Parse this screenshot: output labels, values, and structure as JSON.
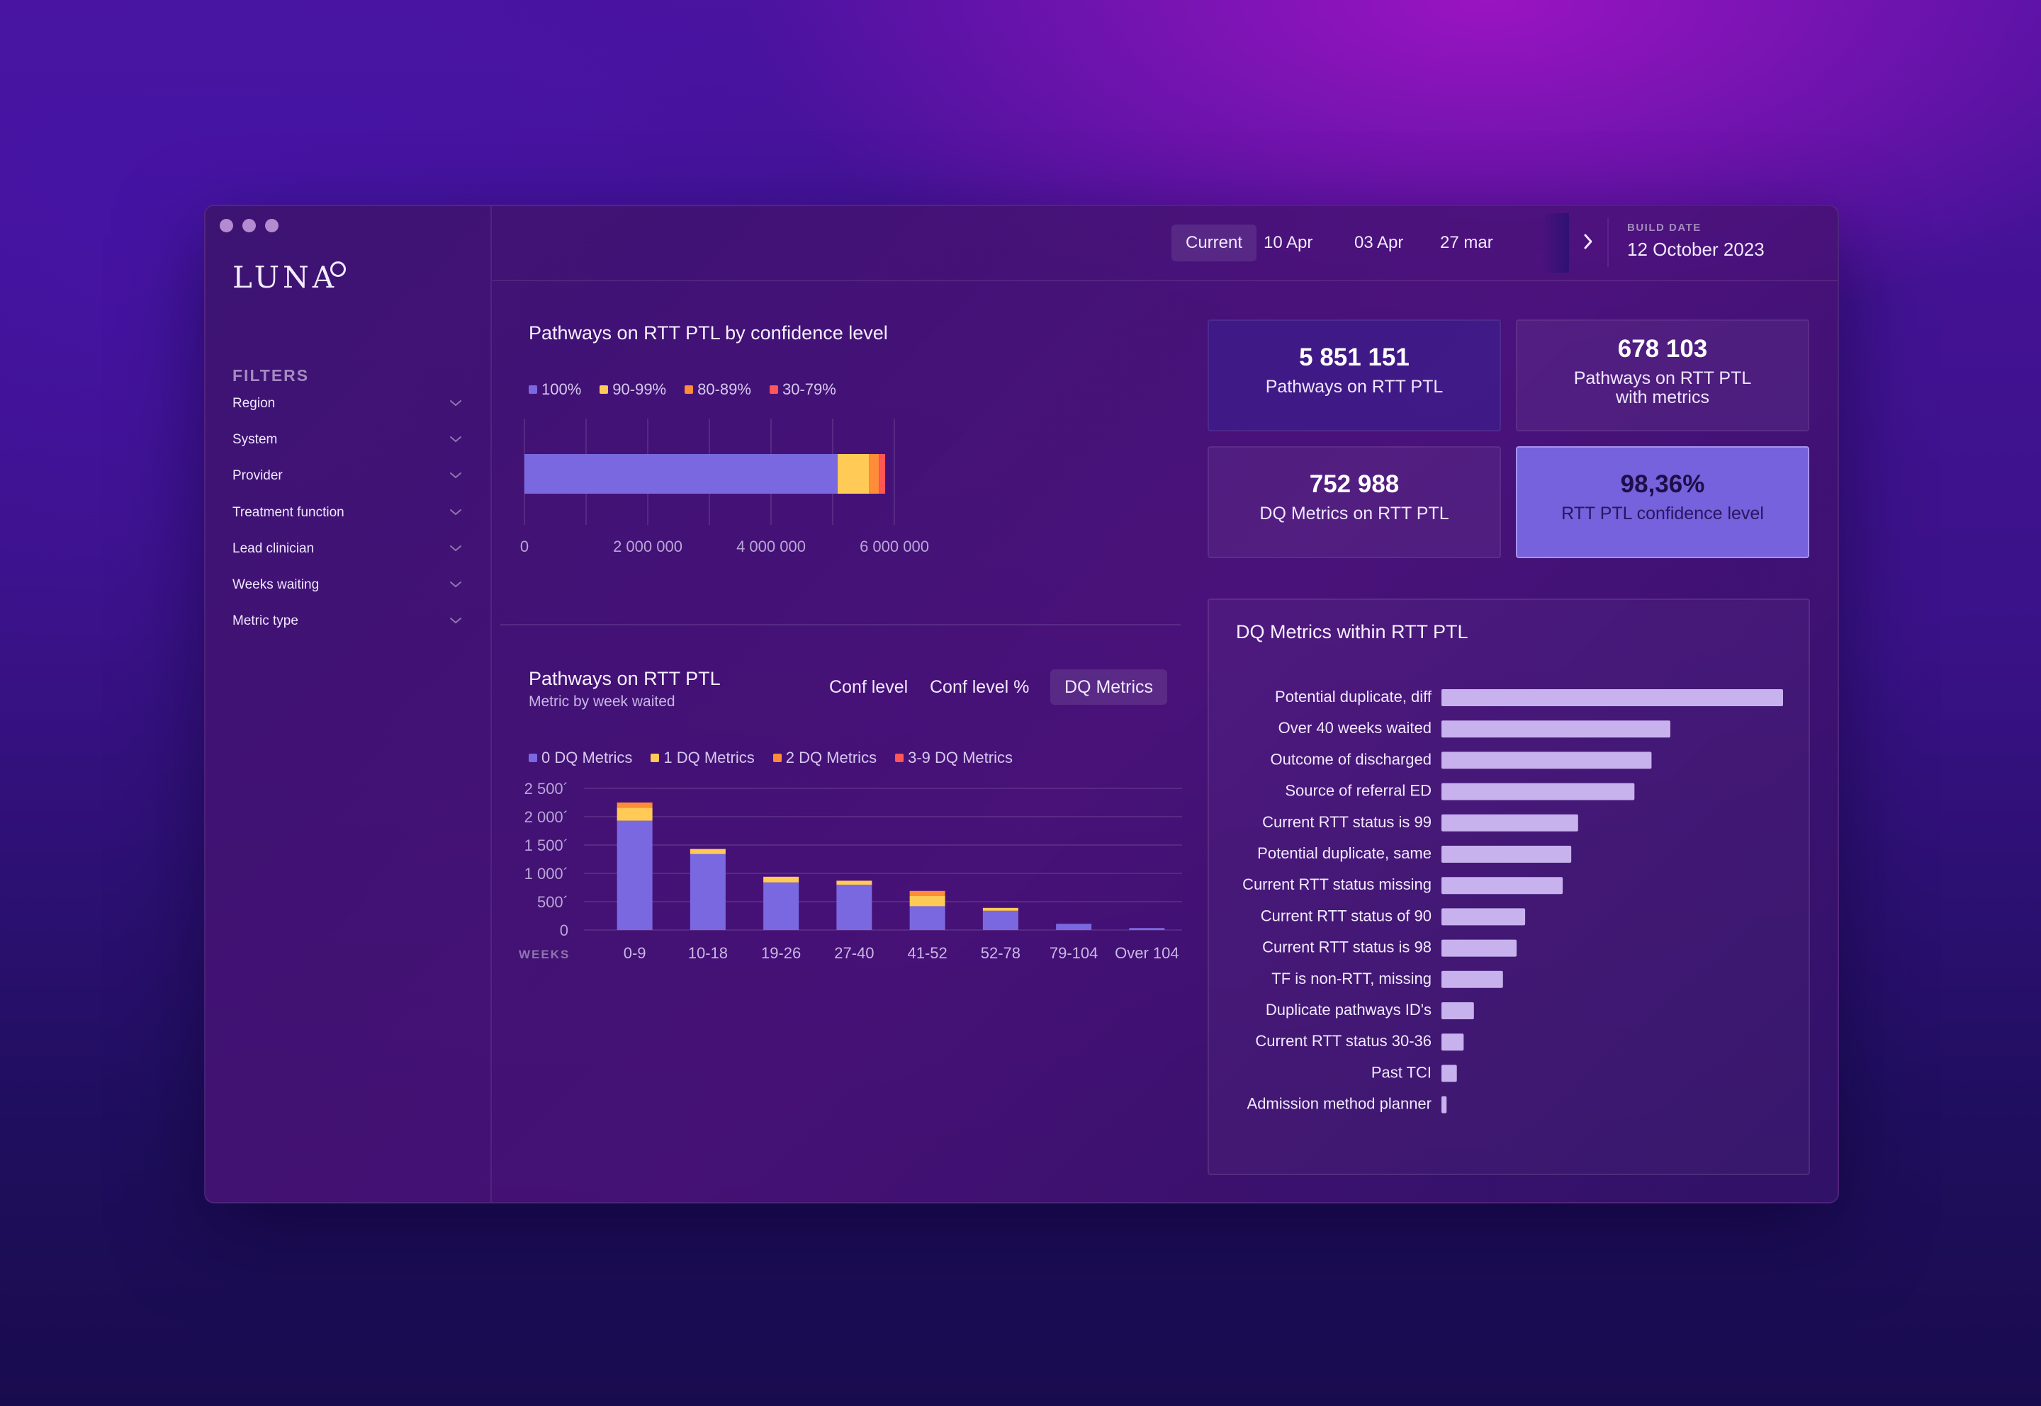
{
  "window": {
    "traffic_light_labels": [
      "close",
      "minimize",
      "zoom"
    ]
  },
  "sidebar": {
    "logo": "LUNA",
    "filters_title": "FILTERS",
    "filters": [
      {
        "label": "Region"
      },
      {
        "label": "System"
      },
      {
        "label": "Provider"
      },
      {
        "label": "Treatment function"
      },
      {
        "label": "Lead clinician"
      },
      {
        "label": "Weeks waiting"
      },
      {
        "label": "Metric type"
      }
    ]
  },
  "topbar": {
    "tabs": [
      "Current",
      "10 Apr",
      "03 Apr",
      "27 mar"
    ],
    "active_tab": "Current",
    "build_label": "BUILD DATE",
    "build_date": "12 October 2023"
  },
  "colors": {
    "c0": "#7a68e0",
    "c1": "#ffca55",
    "c2": "#ff8c38",
    "c3": "#ff5656",
    "dq_bar": "#c8b2ee",
    "kpi_highlight": "#7562dc"
  },
  "confidence_chart": {
    "title": "Pathways on RTT PTL by confidence level",
    "legend": [
      "100%",
      "90-99%",
      "80-89%",
      "30-79%"
    ]
  },
  "weeks_chart": {
    "title": "Pathways on RTT PTL",
    "subtitle": "Metric by week waited",
    "mode_tabs": [
      "Conf level",
      "Conf level %",
      "DQ Metrics"
    ],
    "active_mode": "DQ Metrics",
    "legend": [
      "0 DQ Metrics",
      "1 DQ Metrics",
      "2 DQ Metrics",
      "3-9 DQ Metrics"
    ],
    "x_axis_label": "WEEKS"
  },
  "kpis": [
    {
      "value": "5 851 151",
      "label": "Pathways on RTT PTL",
      "label2": ""
    },
    {
      "value": "678 103",
      "label": "Pathways on RTT PTL",
      "label2": "with metrics"
    },
    {
      "value": "752 988",
      "label": "DQ Metrics on RTT PTL",
      "label2": ""
    },
    {
      "value": "98,36%",
      "label": "RTT PTL confidence level",
      "label2": ""
    }
  ],
  "dq_panel": {
    "title": "DQ Metrics within RTT PTL"
  },
  "chart_data": [
    {
      "type": "bar",
      "orientation": "horizontal-stacked",
      "title": "Pathways on RTT PTL by confidence level",
      "series": [
        {
          "name": "100%",
          "values": [
            5080000
          ]
        },
        {
          "name": "90-99%",
          "values": [
            510000
          ]
        },
        {
          "name": "80-89%",
          "values": [
            160000
          ]
        },
        {
          "name": "30-79%",
          "values": [
            101151
          ]
        }
      ],
      "xlim": [
        0,
        6000000
      ],
      "ticks": [
        0,
        2000000,
        4000000,
        6000000
      ],
      "tick_labels": [
        "0",
        "2 000 000",
        "4 000 000",
        "6 000 000"
      ],
      "grid": true
    },
    {
      "type": "bar",
      "orientation": "vertical-stacked",
      "title": "Pathways on RTT PTL",
      "xlabel": "WEEKS",
      "categories": [
        "0-9",
        "10-18",
        "19-26",
        "27-40",
        "41-52",
        "52-78",
        "79-104",
        "Over 104"
      ],
      "series": [
        {
          "name": "0 DQ Metrics",
          "values": [
            1930,
            1340,
            840,
            800,
            420,
            340,
            110,
            35
          ]
        },
        {
          "name": "1 DQ Metrics",
          "values": [
            230,
            90,
            100,
            70,
            180,
            50,
            0,
            0
          ]
        },
        {
          "name": "2 DQ Metrics",
          "values": [
            90,
            0,
            0,
            0,
            90,
            0,
            0,
            0
          ]
        },
        {
          "name": "3-9 DQ Metrics",
          "values": [
            0,
            0,
            0,
            0,
            0,
            0,
            0,
            0
          ]
        }
      ],
      "ylim": [
        0,
        2500
      ],
      "yticks": [
        0,
        500,
        1000,
        1500,
        2000,
        2500
      ],
      "ytick_labels": [
        "0",
        "500´",
        "1 000´",
        "1 500´",
        "2 000´",
        "2 500´"
      ],
      "grid": true
    },
    {
      "type": "bar",
      "orientation": "horizontal",
      "title": "DQ Metrics within RTT PTL",
      "categories": [
        "Potential duplicate, diff",
        "Over 40 weeks waited",
        "Outcome of discharged",
        "Source of referral ED",
        "Current RTT status is 99",
        "Potential duplicate, same",
        "Current RTT status missing",
        "Current RTT status of 90",
        "Current RTT status is 98",
        "TF is non-RTT, missing",
        "Duplicate pathways ID's",
        "Current RTT status 30-36",
        "Past TCI",
        "Admission method planner"
      ],
      "values": [
        100,
        67,
        61.5,
        56.5,
        40,
        38,
        35.5,
        24.5,
        22,
        18,
        9.5,
        6.5,
        4.5,
        1.5
      ],
      "value_unit": "relative"
    }
  ]
}
